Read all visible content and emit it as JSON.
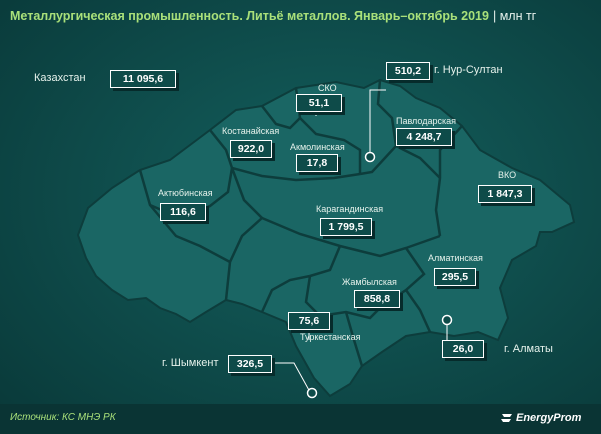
{
  "title": "Металлургическая промышленность. Литьё металлов. Январь–октябрь 2019",
  "unit": "| млн тг",
  "country": {
    "name": "Казахстан",
    "value": "11 095,6"
  },
  "regions": [
    {
      "name": "СКО",
      "value": "51,1"
    },
    {
      "name": "г. Нур-Султан",
      "value": "510,2"
    },
    {
      "name": "Павлодарская",
      "value": "4 248,7"
    },
    {
      "name": "Костанайская",
      "value": "922,0"
    },
    {
      "name": "Акмолинская",
      "value": "17,8"
    },
    {
      "name": "ВКО",
      "value": "1 847,3"
    },
    {
      "name": "Актюбинская",
      "value": "116,6"
    },
    {
      "name": "Карагандинская",
      "value": "1 799,5"
    },
    {
      "name": "Алматинская",
      "value": "295,5"
    },
    {
      "name": "Жамбылская",
      "value": "858,8"
    },
    {
      "name": "Туркестанская",
      "value": "75,6"
    },
    {
      "name": "г. Шымкент",
      "value": "326,5"
    },
    {
      "name": "г. Алматы",
      "value": "26,0"
    }
  ],
  "footer": {
    "source": "Источник: КС МНЭ РК",
    "brand": "EnergyProm"
  },
  "colors": {
    "background": "#0e4a49",
    "land": "#1a6664",
    "border": "#0d3d3c",
    "title": "#a9e07a",
    "box_border": "#ffffff"
  }
}
